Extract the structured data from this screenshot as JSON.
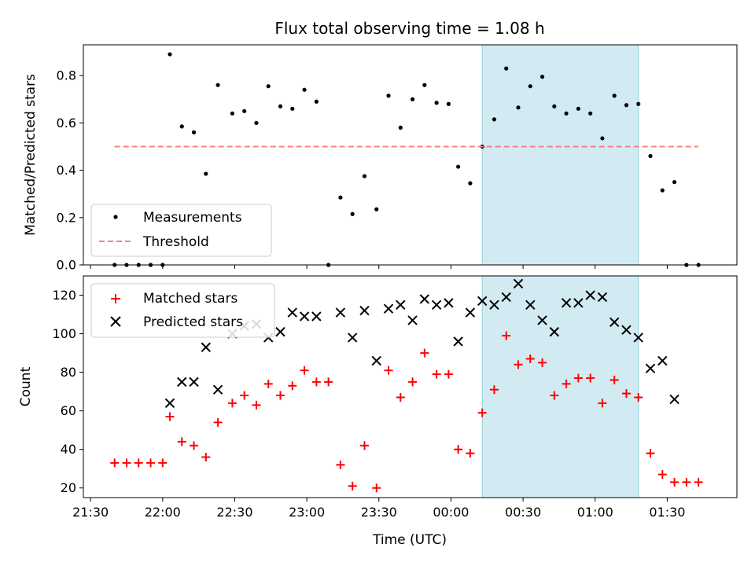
{
  "chart_data": [
    {
      "type": "scatter",
      "title": "Flux total observing time = 1.08 h",
      "xlabel": "",
      "ylabel": "Matched/Predicted stars",
      "ylim": [
        0,
        0.93
      ],
      "yticks": [
        "0.0",
        "0.2",
        "0.4",
        "0.6",
        "0.8"
      ],
      "ytick_values": [
        0,
        0.2,
        0.4,
        0.6,
        0.8
      ],
      "legend_position": "lower-left",
      "shaded_span": {
        "start": "00:13",
        "end": "01:18",
        "color": "#add8e6"
      },
      "series": [
        {
          "name": "Measurements",
          "style": "dot",
          "color": "#000000",
          "points": [
            [
              "21:40",
              0.0
            ],
            [
              "21:45",
              0.0
            ],
            [
              "21:50",
              0.0
            ],
            [
              "21:55",
              0.0
            ],
            [
              "22:00",
              0.0
            ],
            [
              "22:03",
              0.89
            ],
            [
              "22:08",
              0.585
            ],
            [
              "22:13",
              0.56
            ],
            [
              "22:18",
              0.385
            ],
            [
              "22:23",
              0.76
            ],
            [
              "22:29",
              0.64
            ],
            [
              "22:34",
              0.65
            ],
            [
              "22:39",
              0.6
            ],
            [
              "22:44",
              0.755
            ],
            [
              "22:49",
              0.67
            ],
            [
              "22:54",
              0.66
            ],
            [
              "22:59",
              0.74
            ],
            [
              "23:04",
              0.69
            ],
            [
              "23:09",
              0.0
            ],
            [
              "23:14",
              0.285
            ],
            [
              "23:19",
              0.215
            ],
            [
              "23:24",
              0.375
            ],
            [
              "23:29",
              0.235
            ],
            [
              "23:34",
              0.715
            ],
            [
              "23:39",
              0.58
            ],
            [
              "23:44",
              0.7
            ],
            [
              "23:49",
              0.76
            ],
            [
              "23:54",
              0.685
            ],
            [
              "23:59",
              0.68
            ],
            [
              "00:03",
              0.415
            ],
            [
              "00:08",
              0.345
            ],
            [
              "00:13",
              0.5
            ],
            [
              "00:18",
              0.615
            ],
            [
              "00:23",
              0.83
            ],
            [
              "00:28",
              0.665
            ],
            [
              "00:33",
              0.755
            ],
            [
              "00:38",
              0.795
            ],
            [
              "00:43",
              0.67
            ],
            [
              "00:48",
              0.64
            ],
            [
              "00:53",
              0.66
            ],
            [
              "00:58",
              0.64
            ],
            [
              "01:03",
              0.535
            ],
            [
              "01:08",
              0.715
            ],
            [
              "01:13",
              0.675
            ],
            [
              "01:18",
              0.68
            ],
            [
              "01:23",
              0.46
            ],
            [
              "01:28",
              0.315
            ],
            [
              "01:33",
              0.35
            ],
            [
              "01:38",
              0.0
            ],
            [
              "01:43",
              0.0
            ]
          ]
        },
        {
          "name": "Threshold",
          "style": "dashed-line",
          "color": "#ff7f7f",
          "points": [
            [
              "21:40",
              0.5
            ],
            [
              "01:43",
              0.5
            ]
          ]
        }
      ]
    },
    {
      "type": "scatter",
      "title": "",
      "xlabel": "Time (UTC)",
      "ylabel": "Count",
      "ylim": [
        15,
        130
      ],
      "yticks": [
        "20",
        "40",
        "60",
        "80",
        "100",
        "120"
      ],
      "ytick_values": [
        20,
        40,
        60,
        80,
        100,
        120
      ],
      "xlim": [
        "21:27",
        "01:59"
      ],
      "xticks": [
        "21:30",
        "22:00",
        "22:30",
        "23:00",
        "23:30",
        "00:00",
        "00:30",
        "01:00",
        "01:30"
      ],
      "legend_position": "upper-left",
      "shaded_span": {
        "start": "00:13",
        "end": "01:18",
        "color": "#add8e6"
      },
      "series": [
        {
          "name": "Matched stars",
          "style": "plus",
          "color": "#ff0000",
          "points": [
            [
              "21:40",
              33
            ],
            [
              "21:45",
              33
            ],
            [
              "21:50",
              33
            ],
            [
              "21:55",
              33
            ],
            [
              "22:00",
              33
            ],
            [
              "22:03",
              57
            ],
            [
              "22:08",
              44
            ],
            [
              "22:13",
              42
            ],
            [
              "22:18",
              36
            ],
            [
              "22:23",
              54
            ],
            [
              "22:29",
              64
            ],
            [
              "22:34",
              68
            ],
            [
              "22:39",
              63
            ],
            [
              "22:44",
              74
            ],
            [
              "22:49",
              68
            ],
            [
              "22:54",
              73
            ],
            [
              "22:59",
              81
            ],
            [
              "23:04",
              75
            ],
            [
              "23:09",
              75
            ],
            [
              "23:14",
              32
            ],
            [
              "23:19",
              21
            ],
            [
              "23:24",
              42
            ],
            [
              "23:29",
              20
            ],
            [
              "23:34",
              81
            ],
            [
              "23:39",
              67
            ],
            [
              "23:44",
              75
            ],
            [
              "23:49",
              90
            ],
            [
              "23:54",
              79
            ],
            [
              "23:59",
              79
            ],
            [
              "00:03",
              40
            ],
            [
              "00:08",
              38
            ],
            [
              "00:13",
              59
            ],
            [
              "00:18",
              71
            ],
            [
              "00:23",
              99
            ],
            [
              "00:28",
              84
            ],
            [
              "00:33",
              87
            ],
            [
              "00:38",
              85
            ],
            [
              "00:43",
              68
            ],
            [
              "00:48",
              74
            ],
            [
              "00:53",
              77
            ],
            [
              "00:58",
              77
            ],
            [
              "01:03",
              64
            ],
            [
              "01:08",
              76
            ],
            [
              "01:13",
              69
            ],
            [
              "01:18",
              67
            ],
            [
              "01:23",
              38
            ],
            [
              "01:28",
              27
            ],
            [
              "01:33",
              23
            ],
            [
              "01:38",
              23
            ],
            [
              "01:43",
              23
            ]
          ]
        },
        {
          "name": "Predicted stars",
          "style": "cross",
          "color": "#000000",
          "points": [
            [
              "22:03",
              64
            ],
            [
              "22:08",
              75
            ],
            [
              "22:13",
              75
            ],
            [
              "22:18",
              93
            ],
            [
              "22:23",
              71
            ],
            [
              "22:29",
              100
            ],
            [
              "22:34",
              104
            ],
            [
              "22:39",
              105
            ],
            [
              "22:44",
              98
            ],
            [
              "22:49",
              101
            ],
            [
              "22:54",
              111
            ],
            [
              "22:59",
              109
            ],
            [
              "23:04",
              109
            ],
            [
              "23:14",
              111
            ],
            [
              "23:19",
              98
            ],
            [
              "23:24",
              112
            ],
            [
              "23:29",
              86
            ],
            [
              "23:34",
              113
            ],
            [
              "23:39",
              115
            ],
            [
              "23:44",
              107
            ],
            [
              "23:49",
              118
            ],
            [
              "23:54",
              115
            ],
            [
              "23:59",
              116
            ],
            [
              "00:03",
              96
            ],
            [
              "00:08",
              111
            ],
            [
              "00:13",
              117
            ],
            [
              "00:18",
              115
            ],
            [
              "00:23",
              119
            ],
            [
              "00:28",
              126
            ],
            [
              "00:33",
              115
            ],
            [
              "00:38",
              107
            ],
            [
              "00:43",
              101
            ],
            [
              "00:48",
              116
            ],
            [
              "00:53",
              116
            ],
            [
              "00:58",
              120
            ],
            [
              "01:03",
              119
            ],
            [
              "01:08",
              106
            ],
            [
              "01:13",
              102
            ],
            [
              "01:18",
              98
            ],
            [
              "01:23",
              82
            ],
            [
              "01:28",
              86
            ],
            [
              "01:33",
              66
            ]
          ]
        }
      ]
    }
  ]
}
